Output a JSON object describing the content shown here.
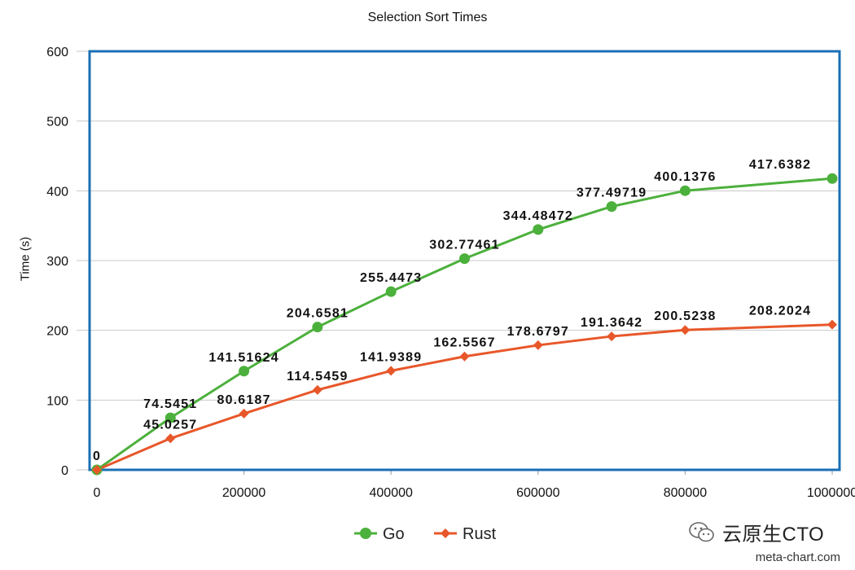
{
  "chart_data": {
    "type": "line",
    "title": "Selection Sort Times",
    "xlabel": "",
    "ylabel": "Time (s)",
    "x": [
      0,
      100000,
      200000,
      300000,
      400000,
      500000,
      600000,
      700000,
      800000,
      1000000
    ],
    "xlim": [
      0,
      1000000
    ],
    "ylim": [
      0,
      600
    ],
    "x_ticks": [
      0,
      200000,
      400000,
      600000,
      800000,
      1000000
    ],
    "y_ticks": [
      0,
      100,
      200,
      300,
      400,
      500,
      600
    ],
    "grid": "horizontal",
    "legend": "bottom-center",
    "series": [
      {
        "name": "Go",
        "marker": "circle",
        "color": "#4cb03c",
        "values": [
          0,
          74.5451,
          141.51624,
          204.6581,
          255.4473,
          302.77461,
          344.48472,
          377.49719,
          400.1376,
          417.6382
        ],
        "labels": [
          "0",
          "74.5451",
          "141.51624",
          "204.6581",
          "255.4473",
          "302.77461",
          "344.48472",
          "377.49719",
          "400.1376",
          "417.6382"
        ]
      },
      {
        "name": "Rust",
        "marker": "diamond",
        "color": "#e8572a",
        "values": [
          0,
          45.0257,
          80.6187,
          114.5459,
          141.9389,
          162.5567,
          178.6797,
          191.3642,
          200.5238,
          208.2024
        ],
        "labels": [
          "",
          "45.0257",
          "80.6187",
          "114.5459",
          "141.9389",
          "162.5567",
          "178.6797",
          "191.3642",
          "200.5238",
          "208.2024"
        ]
      }
    ]
  },
  "plot_border_color": "#1a6fb5",
  "grid_color": "#c8c8c8",
  "watermark": {
    "icon": "wechat-icon",
    "text": "云原生CTO"
  },
  "credit": "meta-chart.com"
}
